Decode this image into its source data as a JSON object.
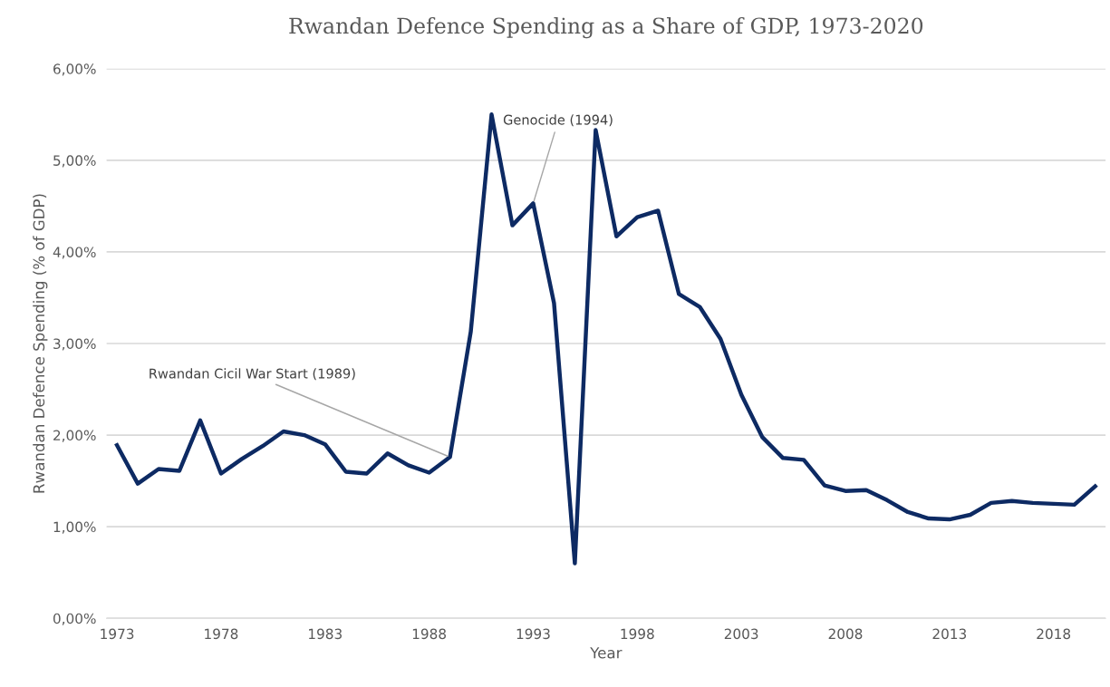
{
  "chart_data": {
    "type": "line",
    "title": "Rwandan Defence Spending as a Share of GDP, 1973-2020",
    "xlabel": "Year",
    "ylabel": "Rwandan Defence Spending (% of GDP)",
    "x": [
      1973,
      1974,
      1975,
      1976,
      1977,
      1978,
      1979,
      1980,
      1981,
      1982,
      1983,
      1984,
      1985,
      1986,
      1987,
      1988,
      1989,
      1990,
      1991,
      1992,
      1993,
      1994,
      1995,
      1996,
      1997,
      1998,
      1999,
      2000,
      2001,
      2002,
      2003,
      2004,
      2005,
      2006,
      2007,
      2008,
      2009,
      2010,
      2011,
      2012,
      2013,
      2014,
      2015,
      2016,
      2017,
      2018,
      2019,
      2020
    ],
    "series": [
      {
        "color": "#0d2a63",
        "values": [
          1.89,
          1.47,
          1.63,
          1.61,
          2.16,
          1.58,
          1.74,
          1.88,
          2.04,
          2.0,
          1.9,
          1.6,
          1.58,
          1.8,
          1.67,
          1.59,
          1.76,
          3.13,
          5.5,
          4.29,
          4.53,
          3.44,
          0.6,
          5.33,
          4.17,
          4.38,
          4.45,
          3.54,
          3.4,
          3.05,
          2.44,
          1.98,
          1.75,
          1.73,
          1.45,
          1.39,
          1.4,
          1.29,
          1.16,
          1.09,
          1.08,
          1.13,
          1.26,
          1.28,
          1.26,
          1.25,
          1.24,
          1.44
        ]
      }
    ],
    "xlim": [
      1972.5,
      2020.5
    ],
    "xticks": [
      1973,
      1978,
      1983,
      1988,
      1993,
      1998,
      2003,
      2008,
      2013,
      2018
    ],
    "ylim": [
      0,
      6
    ],
    "yticks": [
      {
        "value": 0,
        "label": "0,00%"
      },
      {
        "value": 1,
        "label": "1,00%"
      },
      {
        "value": 2,
        "label": "2,00%"
      },
      {
        "value": 3,
        "label": "3,00%"
      },
      {
        "value": 4,
        "label": "4,00%"
      },
      {
        "value": 5,
        "label": "5,00%"
      },
      {
        "value": 6,
        "label": "6,00%"
      }
    ],
    "grid": "y",
    "marker": "none",
    "line_style": "solid",
    "annotations": [
      {
        "text": "Rwandan Cicil War Start (1989)",
        "x": 1989,
        "y": 1.76
      },
      {
        "text": "Genocide (1994)",
        "x": 1993,
        "y": 4.53
      }
    ]
  }
}
